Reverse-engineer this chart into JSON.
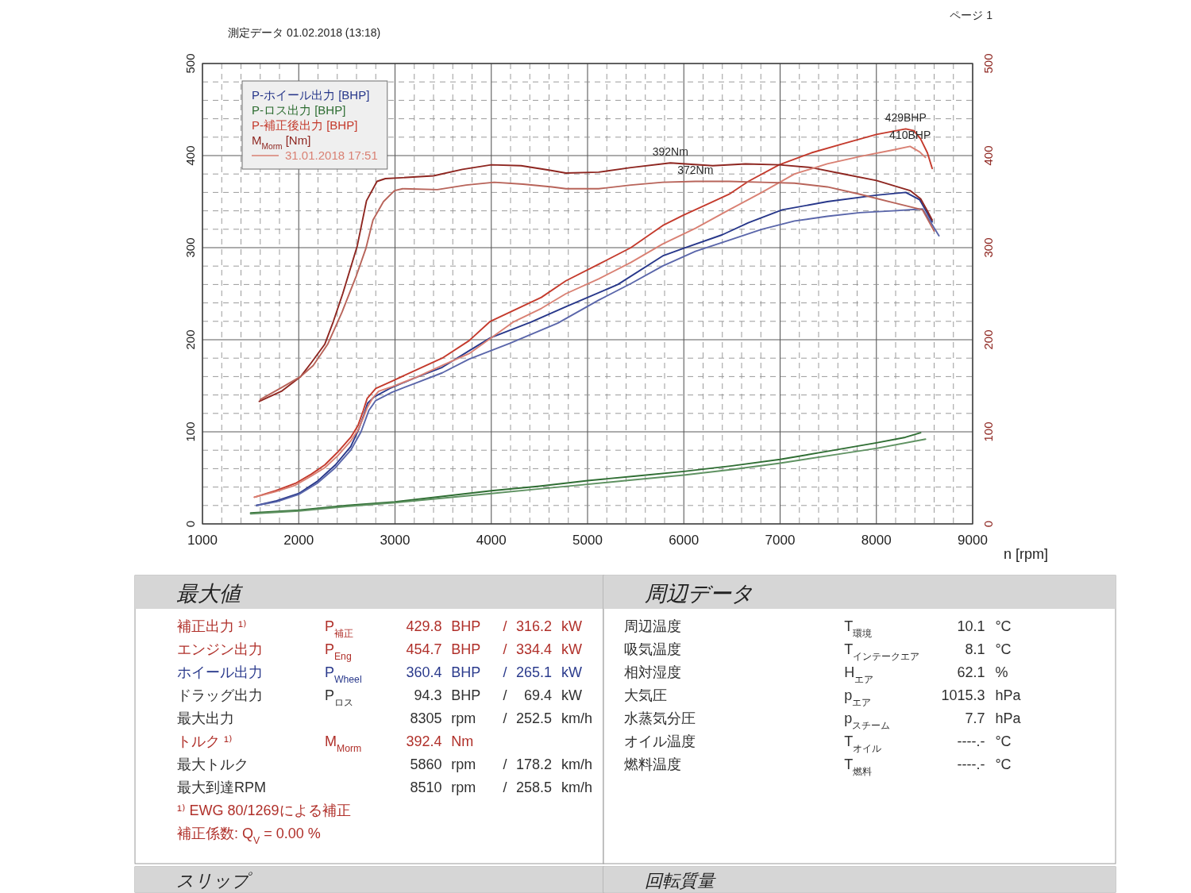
{
  "chart_data": [
    {
      "type": "line",
      "title": "測定データ 01.02.2018 (13:18)",
      "xlabel": "n [rpm]",
      "xlim": [
        1000,
        9000
      ],
      "ylim": [
        0,
        500
      ],
      "y2lim": [
        0,
        500
      ],
      "xticks": [
        1000,
        {
          "value": 1200,
          "label": null
        },
        {
          "value": 1400,
          "label": null
        },
        {
          "value": 1600,
          "label": null
        },
        {
          "value": 1800,
          "label": null
        },
        2000,
        {
          "value": 2200,
          "label": null
        },
        {
          "value": 2400,
          "label": null
        },
        {
          "value": 2600,
          "label": null
        },
        {
          "value": 2800,
          "label": null
        },
        3000,
        {
          "value": 3200,
          "label": null
        },
        {
          "value": 3400,
          "label": null
        },
        {
          "value": 3600,
          "label": null
        },
        {
          "value": 3800,
          "label": null
        },
        4000,
        {
          "value": 4200,
          "label": null
        },
        {
          "value": 4400,
          "label": null
        },
        {
          "value": 4600,
          "label": null
        },
        {
          "value": 4800,
          "label": null
        },
        5000,
        {
          "value": 5200,
          "label": null
        },
        {
          "value": 5400,
          "label": null
        },
        {
          "value": 5600,
          "label": null
        },
        {
          "value": 5800,
          "label": null
        },
        6000,
        {
          "value": 6200,
          "label": null
        },
        {
          "value": 6400,
          "label": null
        },
        {
          "value": 6600,
          "label": null
        },
        {
          "value": 6800,
          "label": null
        },
        7000,
        {
          "value": 7200,
          "label": null
        },
        {
          "value": 7400,
          "label": null
        },
        {
          "value": 7600,
          "label": null
        },
        {
          "value": 7800,
          "label": null
        },
        8000,
        {
          "value": 8200,
          "label": null
        },
        {
          "value": 8400,
          "label": null
        },
        {
          "value": 8600,
          "label": null
        },
        {
          "value": 8800,
          "label": null
        },
        9000
      ],
      "yticks": [
        0,
        {
          "value": 20,
          "label": null
        },
        {
          "value": 40,
          "label": null
        },
        {
          "value": 60,
          "label": null
        },
        {
          "value": 80,
          "label": null
        },
        100,
        {
          "value": 120,
          "label": null
        },
        {
          "value": 140,
          "label": null
        },
        {
          "value": 160,
          "label": null
        },
        {
          "value": 180,
          "label": null
        },
        200,
        {
          "value": 220,
          "label": null
        },
        {
          "value": 240,
          "label": null
        },
        {
          "value": 260,
          "label": null
        },
        {
          "value": 280,
          "label": null
        },
        300,
        {
          "value": 320,
          "label": null
        },
        {
          "value": 340,
          "label": null
        },
        {
          "value": 360,
          "label": null
        },
        {
          "value": 380,
          "label": null
        },
        400,
        {
          "value": 420,
          "label": null
        },
        {
          "value": 440,
          "label": null
        },
        {
          "value": 460,
          "label": null
        },
        {
          "value": 480,
          "label": null
        },
        500
      ],
      "y2ticks": [
        0,
        100,
        200,
        300,
        400,
        500
      ],
      "grid": true,
      "legend": "top left",
      "series": [
        {
          "name": "P-ホイール出力 [BHP]",
          "color": "#27378a",
          "x": [
            1560,
            1770,
            2000,
            2190,
            2380,
            2540,
            2620,
            2675,
            2715,
            2785,
            2945,
            3215,
            3490,
            3770,
            3990,
            4410,
            4780,
            5315,
            5780,
            5990,
            6400,
            6670,
            7020,
            7490,
            8000,
            8305,
            8450,
            8580
          ],
          "values": [
            20,
            25,
            33,
            46,
            64,
            84,
            102,
            118,
            131,
            138,
            147,
            159,
            170,
            188,
            202,
            219,
            236,
            260,
            291,
            299,
            314,
            327,
            341,
            350,
            357,
            360,
            352,
            328
          ]
        },
        {
          "name": "P-ロス出力 [BHP]",
          "color": "#2f6e33",
          "x": [
            1500,
            2000,
            2500,
            3000,
            3500,
            4000,
            4500,
            5000,
            5500,
            6000,
            6500,
            7000,
            7500,
            8000,
            8300,
            8460
          ],
          "values": [
            12,
            15,
            20,
            24,
            30,
            36,
            41,
            47,
            52,
            57,
            63,
            70,
            79,
            88,
            94,
            99
          ]
        },
        {
          "name": "P-補正後出力 [BHP]",
          "color": "#c43a2c",
          "x": [
            1540,
            1760,
            1965,
            2130,
            2270,
            2405,
            2540,
            2616,
            2670,
            2710,
            2800,
            2970,
            3215,
            3490,
            3770,
            3990,
            4520,
            4775,
            5115,
            5450,
            5780,
            5990,
            6470,
            6670,
            6990,
            7325,
            7660,
            8000,
            8305,
            8390,
            8460,
            8530,
            8580
          ],
          "values": [
            29,
            36,
            44,
            54,
            64,
            78,
            94,
            107,
            123,
            136,
            147,
            155,
            167,
            180,
            199,
            220,
            246,
            264,
            282,
            300,
            324,
            335,
            358,
            372,
            390,
            403,
            413,
            423,
            429,
            427,
            418,
            403,
            386
          ]
        },
        {
          "name": "M$_{Morm}$ [Nm]",
          "color": "#8e2620",
          "axis": "y2",
          "x": [
            1590,
            1820,
            2020,
            2130,
            2270,
            2360,
            2457,
            2608,
            2704,
            2813,
            2900,
            3075,
            3400,
            3700,
            4000,
            4310,
            4610,
            4775,
            5115,
            5450,
            5860,
            6300,
            6640,
            6990,
            7325,
            7660,
            8000,
            8350,
            8460,
            8530,
            8580
          ],
          "values": [
            133,
            144,
            160,
            175,
            195,
            220,
            250,
            302,
            351,
            372,
            375,
            376,
            378,
            385,
            390,
            389,
            384,
            381,
            382,
            387,
            392,
            389,
            391,
            390,
            387,
            380,
            373,
            362,
            353,
            340,
            330
          ]
        },
        {
          "name": "31.01.2018 17:51",
          "color": "#d98073",
          "x": [
            1540,
            1760,
            1965,
            2130,
            2270,
            2405,
            2540,
            2616,
            2670,
            2710,
            2770,
            2830,
            2970,
            3215,
            3490,
            3770,
            4225,
            4520,
            4775,
            5115,
            5450,
            5780,
            6120,
            6470,
            6810,
            7150,
            7490,
            7830,
            8170,
            8350,
            8450,
            8510
          ],
          "values": [
            29,
            35,
            42,
            52,
            61,
            74,
            90,
            102,
            115,
            126,
            137,
            144,
            149,
            159,
            172,
            185,
            219,
            234,
            250,
            266,
            284,
            304,
            321,
            341,
            360,
            380,
            391,
            399,
            406,
            410,
            404,
            398
          ]
        },
        {
          "color": "#5a66aa",
          "x": [
            1560,
            1770,
            2000,
            2190,
            2380,
            2540,
            2647,
            2727,
            2800,
            2970,
            3215,
            3490,
            3770,
            4190,
            4690,
            5115,
            5450,
            5780,
            6120,
            6470,
            6810,
            7150,
            7490,
            7830,
            8170,
            8480,
            8650
          ],
          "values": [
            20,
            24,
            32,
            44,
            61,
            80,
            100,
            123,
            134,
            143,
            153,
            164,
            179,
            196,
            218,
            243,
            261,
            280,
            296,
            308,
            320,
            329,
            334,
            338,
            340,
            342,
            313
          ]
        },
        {
          "color": "#5f9262",
          "x": [
            1500,
            2000,
            2500,
            3000,
            3500,
            4000,
            4500,
            5000,
            5500,
            6000,
            6500,
            7000,
            7500,
            8000,
            8510
          ],
          "values": [
            11,
            14,
            19,
            23,
            28,
            33,
            38,
            43,
            48,
            53,
            59,
            66,
            74,
            82,
            92
          ]
        },
        {
          "color": "#b8645a",
          "axis": "y2",
          "x": [
            1600,
            1820,
            2020,
            2150,
            2300,
            2450,
            2600,
            2697,
            2771,
            2880,
            2995,
            3080,
            3440,
            3740,
            4030,
            4330,
            4630,
            4775,
            5115,
            5450,
            5780,
            6120,
            6470,
            6810,
            7150,
            7490,
            7830,
            8170,
            8480,
            8600
          ],
          "values": [
            135,
            148,
            160,
            172,
            195,
            230,
            270,
            299,
            330,
            350,
            362,
            364,
            363,
            368,
            371,
            369,
            366,
            364,
            364,
            368,
            371,
            372,
            372,
            371,
            370,
            366,
            358,
            349,
            341,
            318
          ]
        }
      ],
      "annotations": [
        "ページ 1",
        {
          "text": "392Nm",
          "x": 5860,
          "y": 392
        },
        {
          "text": "372Nm",
          "x": 6120,
          "y": 372
        },
        {
          "text": "429BHP",
          "x": 8305,
          "y": 429
        },
        {
          "text": "410BHP",
          "x": 8350,
          "y": 410
        }
      ]
    },
    {
      "type": "other",
      "title": "最大値",
      "annotations": [
        "補正出力 ¹⁾  P$_{補正}$  429.8  BHP  /  316.2  kW",
        "エンジン出力  P$_{Eng}$  454.7  BHP  /  334.4  kW",
        "ホイール出力  P$_{Wheel}$  360.4  BHP  /  265.1  kW",
        "ドラッグ出力  P$_{ロス}$  94.3  BHP  /  69.4  kW",
        "最大出力  8305  rpm  /  252.5  km/h",
        "トルク ¹⁾  M$_{Morm}$  392.4  Nm",
        "最大トルク  5860  rpm  /  178.2  km/h",
        "最大到達RPM  8510  rpm  /  258.5  km/h",
        "¹⁾ EWG 80/1269による補正",
        "補正係数: Q$_{V}$ = 0.00 %"
      ]
    },
    {
      "type": "other",
      "title": "周辺データ",
      "annotations": [
        "周辺温度  T$_{環境}$  10.1  °C",
        "吸気温度  T$_{インテークエア}$  8.1  °C",
        "相対湿度  H$_{エア}$  62.1  %",
        "大気圧  p$_{エア}$  1015.3  hPa",
        "水蒸気分圧  p$_{スチーム}$  7.7  hPa",
        "オイル温度  T$_{オイル}$  ----.-  °C",
        "燃料温度  T$_{燃料}$  ----.-  °C"
      ]
    },
    {
      "type": "other",
      "title": "スリップ"
    },
    {
      "type": "other",
      "title": "回転質量"
    }
  ]
}
